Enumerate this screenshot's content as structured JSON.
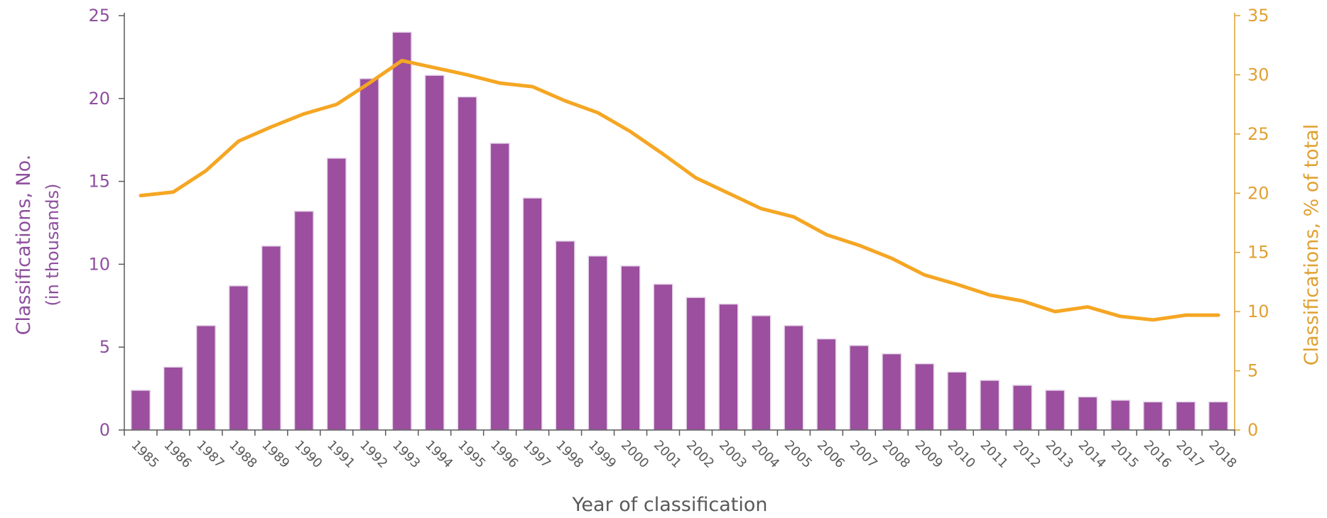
{
  "chart_data": {
    "type": "bar",
    "categories": [
      "1985",
      "1986",
      "1987",
      "1988",
      "1989",
      "1990",
      "1991",
      "1992",
      "1993",
      "1994",
      "1995",
      "1996",
      "1997",
      "1998",
      "1999",
      "2000",
      "2001",
      "2002",
      "2003",
      "2004",
      "2005",
      "2006",
      "2007",
      "2008",
      "2009",
      "2010",
      "2011",
      "2012",
      "2013",
      "2014",
      "2015",
      "2016",
      "2017",
      "2018"
    ],
    "series": [
      {
        "type": "bar",
        "axis": "left",
        "color": "#9b4f9e",
        "values": [
          2.4,
          3.8,
          6.3,
          8.7,
          11.1,
          13.2,
          16.4,
          21.2,
          24.0,
          21.4,
          20.1,
          17.3,
          14.0,
          11.4,
          10.5,
          9.9,
          8.8,
          8.0,
          7.6,
          6.9,
          6.3,
          5.5,
          5.1,
          4.6,
          4.0,
          3.5,
          3.0,
          2.7,
          2.4,
          2.0,
          1.8,
          1.7,
          1.7,
          1.7
        ]
      },
      {
        "type": "line",
        "axis": "right",
        "color": "#f5a623",
        "values": [
          19.8,
          20.1,
          21.9,
          24.4,
          25.6,
          26.7,
          27.5,
          29.3,
          31.2,
          30.6,
          30.0,
          29.3,
          29.0,
          27.8,
          26.8,
          25.2,
          23.3,
          21.3,
          20.0,
          18.7,
          18.0,
          16.5,
          15.6,
          14.5,
          13.1,
          12.3,
          11.4,
          10.9,
          10.0,
          10.4,
          9.6,
          9.3,
          9.7,
          9.7
        ]
      }
    ],
    "xlabel": "Year of classification",
    "ylabel_left": "Classifications, No.",
    "ylabel_left_sub": "(in thousands)",
    "ylabel_right": "Classifications, % of total",
    "ylim_left": [
      0,
      25
    ],
    "ylim_right": [
      0,
      35
    ],
    "yticks_left": [
      "0",
      "5",
      "10",
      "15",
      "20",
      "25"
    ],
    "yticks_right": [
      "0",
      "5",
      "10",
      "15",
      "20",
      "25",
      "30",
      "35"
    ],
    "grid": false,
    "legend": "none"
  }
}
